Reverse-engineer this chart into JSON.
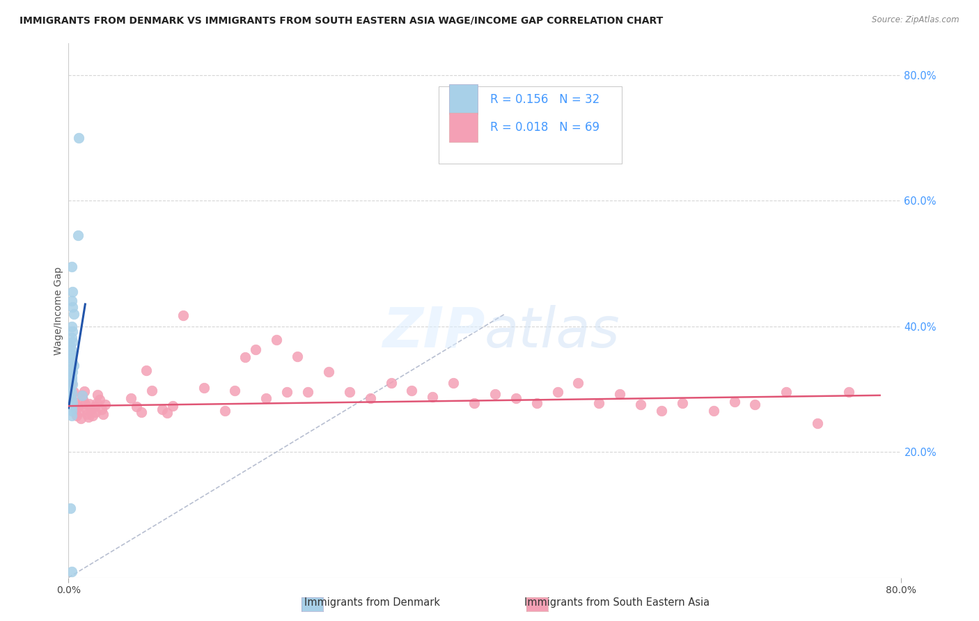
{
  "title": "IMMIGRANTS FROM DENMARK VS IMMIGRANTS FROM SOUTH EASTERN ASIA WAGE/INCOME GAP CORRELATION CHART",
  "source": "Source: ZipAtlas.com",
  "ylabel": "Wage/Income Gap",
  "xlim": [
    0.0,
    0.8
  ],
  "ylim": [
    0.0,
    0.85
  ],
  "y_ticks_right": [
    0.2,
    0.4,
    0.6,
    0.8
  ],
  "y_tick_labels_right": [
    "20.0%",
    "40.0%",
    "60.0%",
    "80.0%"
  ],
  "denmark_R": 0.156,
  "denmark_N": 32,
  "sea_R": 0.018,
  "sea_N": 69,
  "denmark_color": "#a8d0e8",
  "sea_color": "#f4a0b5",
  "denmark_line_color": "#2255aa",
  "sea_line_color": "#e05575",
  "diagonal_color": "#b0b8cc",
  "grid_color": "#cccccc",
  "background_color": "#ffffff",
  "legend_text_color": "#4499ff",
  "right_axis_color": "#4499ff",
  "denmark_x": [
    0.01,
    0.009,
    0.003,
    0.004,
    0.003,
    0.004,
    0.005,
    0.003,
    0.004,
    0.003,
    0.004,
    0.002,
    0.003,
    0.003,
    0.003,
    0.004,
    0.005,
    0.003,
    0.004,
    0.003,
    0.003,
    0.004,
    0.002,
    0.003,
    0.013,
    0.003,
    0.004,
    0.003,
    0.003,
    0.003,
    0.002,
    0.003
  ],
  "denmark_y": [
    0.7,
    0.545,
    0.495,
    0.455,
    0.44,
    0.43,
    0.42,
    0.4,
    0.392,
    0.382,
    0.375,
    0.368,
    0.362,
    0.355,
    0.348,
    0.342,
    0.338,
    0.332,
    0.328,
    0.32,
    0.315,
    0.308,
    0.3,
    0.294,
    0.29,
    0.284,
    0.278,
    0.272,
    0.265,
    0.258,
    0.11,
    0.01
  ],
  "sea_x": [
    0.003,
    0.005,
    0.006,
    0.007,
    0.008,
    0.009,
    0.01,
    0.012,
    0.013,
    0.014,
    0.015,
    0.016,
    0.017,
    0.018,
    0.019,
    0.02,
    0.022,
    0.023,
    0.025,
    0.026,
    0.027,
    0.028,
    0.03,
    0.032,
    0.033,
    0.035,
    0.06,
    0.065,
    0.07,
    0.075,
    0.08,
    0.09,
    0.095,
    0.1,
    0.11,
    0.13,
    0.15,
    0.16,
    0.17,
    0.18,
    0.19,
    0.2,
    0.21,
    0.22,
    0.23,
    0.25,
    0.27,
    0.29,
    0.31,
    0.33,
    0.35,
    0.37,
    0.39,
    0.41,
    0.43,
    0.45,
    0.47,
    0.49,
    0.51,
    0.53,
    0.55,
    0.57,
    0.59,
    0.62,
    0.64,
    0.66,
    0.69,
    0.72,
    0.75
  ],
  "sea_y": [
    0.31,
    0.295,
    0.28,
    0.268,
    0.258,
    0.272,
    0.263,
    0.253,
    0.29,
    0.283,
    0.296,
    0.276,
    0.268,
    0.26,
    0.255,
    0.277,
    0.268,
    0.258,
    0.272,
    0.263,
    0.278,
    0.291,
    0.283,
    0.268,
    0.26,
    0.275,
    0.285,
    0.272,
    0.263,
    0.33,
    0.298,
    0.268,
    0.262,
    0.273,
    0.417,
    0.302,
    0.265,
    0.298,
    0.351,
    0.363,
    0.285,
    0.378,
    0.295,
    0.352,
    0.295,
    0.328,
    0.295,
    0.285,
    0.31,
    0.298,
    0.288,
    0.31,
    0.278,
    0.292,
    0.285,
    0.278,
    0.295,
    0.31,
    0.278,
    0.292,
    0.275,
    0.265,
    0.278,
    0.265,
    0.28,
    0.275,
    0.295,
    0.245,
    0.295
  ]
}
